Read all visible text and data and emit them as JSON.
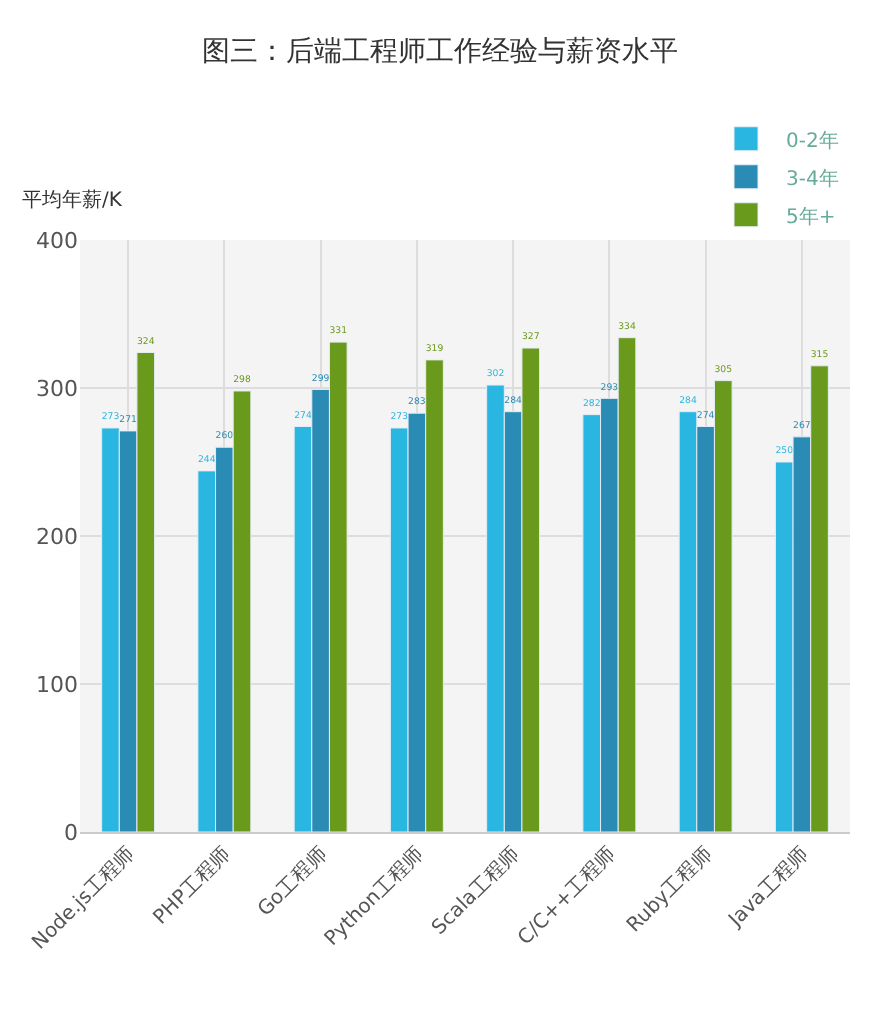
{
  "chart_data": {
    "type": "bar",
    "title": "图三：后端工程师工作经验与薪资水平",
    "ylabel": "平均年薪/K",
    "categories": [
      "Node.js工程师",
      "PHP工程师",
      "Go工程师",
      "Python工程师",
      "Scala工程师",
      "C/C++工程师",
      "Ruby工程师",
      "Java工程师"
    ],
    "series": [
      {
        "name": "0-2年",
        "color": "#29b6e0",
        "values": [
          273,
          244,
          274,
          273,
          302,
          282,
          284,
          250
        ]
      },
      {
        "name": "3-4年",
        "color": "#2a8cb5",
        "values": [
          271,
          260,
          299,
          283,
          284,
          293,
          274,
          267
        ]
      },
      {
        "name": "5年+",
        "color": "#6a9a1c",
        "values": [
          324,
          298,
          331,
          319,
          327,
          334,
          305,
          315
        ]
      }
    ],
    "ylim": [
      0,
      400
    ],
    "yticks": [
      0,
      100,
      200,
      300,
      400
    ],
    "grid": true,
    "legend": "top right",
    "data_labels": true
  }
}
